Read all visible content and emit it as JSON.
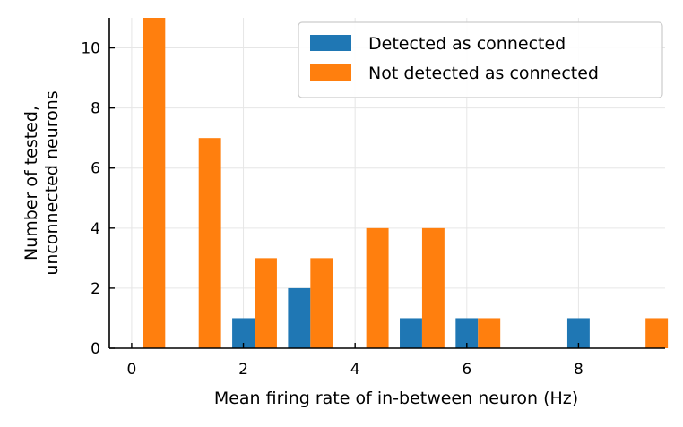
{
  "chart_data": {
    "type": "bar",
    "xlabel": "Mean firing rate of in-between neuron (Hz)",
    "ylabel_lines": [
      "Number of tested,",
      "unconnected neurons"
    ],
    "xlim": [
      -0.4,
      9.55
    ],
    "ylim": [
      0,
      11
    ],
    "xticks": [
      0,
      2,
      4,
      6,
      8
    ],
    "yticks": [
      0,
      2,
      4,
      6,
      8,
      10
    ],
    "grid": true,
    "legend_position": "top-right",
    "bin_width": 0.8,
    "series": [
      {
        "name": "Detected as connected",
        "color": "#1f77b4",
        "bins": [
          0,
          1,
          2,
          3,
          4,
          5,
          6,
          7,
          8,
          9
        ],
        "values": [
          0,
          0,
          1,
          2,
          0,
          1,
          1,
          0,
          1,
          0
        ]
      },
      {
        "name": "Not detected as connected",
        "color": "#ff7f0e",
        "bins": [
          0,
          1,
          2,
          3,
          4,
          5,
          6,
          7,
          8,
          9
        ],
        "values": [
          11,
          7,
          3,
          3,
          4,
          4,
          1,
          0,
          0,
          1
        ]
      }
    ],
    "bin_starts": [
      -0.2,
      0.8,
      1.8,
      2.8,
      3.8,
      4.8,
      5.8,
      6.8,
      7.8,
      8.8
    ]
  }
}
